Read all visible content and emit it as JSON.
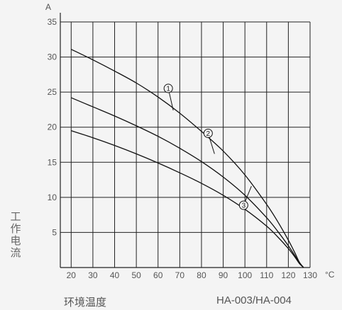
{
  "chart_data": {
    "type": "line",
    "xlabel": "环境温度",
    "ylabel": "工作电流",
    "x_unit": "°C",
    "y_unit": "A",
    "model": "HA-003/HA-004",
    "xlim": [
      15,
      130
    ],
    "ylim": [
      0,
      35
    ],
    "x_ticks": [
      20,
      30,
      40,
      50,
      60,
      70,
      80,
      90,
      100,
      110,
      120,
      130
    ],
    "y_ticks": [
      5,
      10,
      15,
      20,
      25,
      30,
      35
    ],
    "grid": true,
    "series": [
      {
        "name": "1",
        "x": [
          20,
          30,
          40,
          50,
          60,
          70,
          80,
          90,
          100,
          110,
          115,
          120,
          123,
          125,
          127
        ],
        "y": [
          31.1,
          29.6,
          28.0,
          26.3,
          24.3,
          22.0,
          19.4,
          16.6,
          13.2,
          9.0,
          6.6,
          3.9,
          2.1,
          0.8,
          0
        ]
      },
      {
        "name": "2",
        "x": [
          20,
          30,
          40,
          50,
          60,
          70,
          80,
          90,
          100,
          110,
          115,
          120,
          123,
          125,
          127
        ],
        "y": [
          24.2,
          22.9,
          21.6,
          20.2,
          18.7,
          17.0,
          15.1,
          12.9,
          10.3,
          7.1,
          5.2,
          3.1,
          1.7,
          0.7,
          0
        ]
      },
      {
        "name": "3",
        "x": [
          20,
          30,
          40,
          50,
          60,
          70,
          80,
          90,
          100,
          110,
          115,
          120,
          123,
          125,
          127
        ],
        "y": [
          19.5,
          18.5,
          17.4,
          16.2,
          14.9,
          13.5,
          12.0,
          10.3,
          8.3,
          5.9,
          4.4,
          2.7,
          1.5,
          0.6,
          0
        ]
      }
    ],
    "annotations": [
      {
        "label": "1",
        "at_x": 67,
        "at_y": 22.4
      },
      {
        "label": "2",
        "at_x": 86,
        "at_y": 16.2
      },
      {
        "label": "3",
        "at_x": 103,
        "at_y": 11.6
      }
    ]
  }
}
